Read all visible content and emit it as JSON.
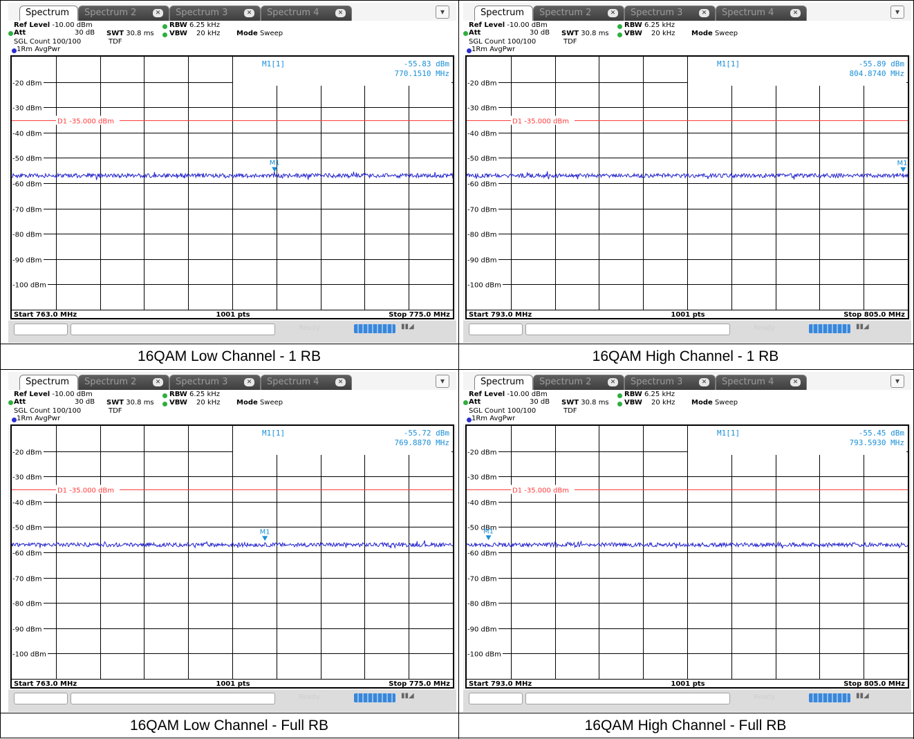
{
  "panels": [
    {
      "tabs": [
        "Spectrum",
        "Spectrum 2",
        "Spectrum 3",
        "Spectrum 4"
      ],
      "ref_level_label": "Ref Level",
      "ref_level": "-10.00 dBm",
      "att_label": "Att",
      "att": "30 dB",
      "swt_label": "SWT",
      "swt": "30.8 ms",
      "rbw_label": "RBW",
      "rbw": "6.25 kHz",
      "vbw_label": "VBW",
      "vbw": "20 kHz",
      "mode_label": "Mode",
      "mode": "Sweep",
      "sgl_count": "SGL Count 100/100",
      "tdf": "TDF",
      "trace_label": "1Rm AvgPwr",
      "marker_name": "M1[1]",
      "marker_level": "-55.83 dBm",
      "marker_freq": "770.1510 MHz",
      "start": "Start 763.0 MHz",
      "pts": "1001 pts",
      "stop": "Stop 775.0 MHz",
      "status_text": "Ready",
      "caption": "16QAM Low Channel - 1 RB",
      "chart_data": {
        "type": "line",
        "x_start_mhz": 763.0,
        "x_stop_mhz": 775.0,
        "y_ref_dbm": -10,
        "ylim": [
          -110,
          -10
        ],
        "ytick_labels": [
          "-20 dBm",
          "-30 dBm",
          "-40 dBm",
          "-50 dBm",
          "-60 dBm",
          "-70 dBm",
          "-80 dBm",
          "-90 dBm",
          "-100 dBm"
        ],
        "display_line": {
          "label": "D1 -35.000 dBm",
          "value_dbm": -35.0
        },
        "trace_noise_floor_dbm": -57.0,
        "marker": {
          "label": "M1",
          "x_mhz": 770.151,
          "y_dbm": -55.83
        }
      }
    },
    {
      "tabs": [
        "Spectrum",
        "Spectrum 2",
        "Spectrum 3",
        "Spectrum 4"
      ],
      "ref_level_label": "Ref Level",
      "ref_level": "-10.00 dBm",
      "att_label": "Att",
      "att": "30 dB",
      "swt_label": "SWT",
      "swt": "30.8 ms",
      "rbw_label": "RBW",
      "rbw": "6.25 kHz",
      "vbw_label": "VBW",
      "vbw": "20 kHz",
      "mode_label": "Mode",
      "mode": "Sweep",
      "sgl_count": "SGL Count 100/100",
      "tdf": "TDF",
      "trace_label": "1Rm AvgPwr",
      "marker_name": "M1[1]",
      "marker_level": "-55.89 dBm",
      "marker_freq": "804.8740 MHz",
      "start": "Start 793.0 MHz",
      "pts": "1001 pts",
      "stop": "Stop 805.0 MHz",
      "status_text": "Ready",
      "caption": "16QAM High Channel - 1 RB",
      "chart_data": {
        "type": "line",
        "x_start_mhz": 793.0,
        "x_stop_mhz": 805.0,
        "y_ref_dbm": -10,
        "ylim": [
          -110,
          -10
        ],
        "ytick_labels": [
          "-20 dBm",
          "-30 dBm",
          "-40 dBm",
          "-50 dBm",
          "-60 dBm",
          "-70 dBm",
          "-80 dBm",
          "-90 dBm",
          "-100 dBm"
        ],
        "display_line": {
          "label": "D1 -35.000 dBm",
          "value_dbm": -35.0
        },
        "trace_noise_floor_dbm": -57.0,
        "marker": {
          "label": "M1",
          "x_mhz": 804.874,
          "y_dbm": -55.89
        }
      }
    },
    {
      "tabs": [
        "Spectrum",
        "Spectrum 2",
        "Spectrum 3",
        "Spectrum 4"
      ],
      "ref_level_label": "Ref Level",
      "ref_level": "-10.00 dBm",
      "att_label": "Att",
      "att": "30 dB",
      "swt_label": "SWT",
      "swt": "30.8 ms",
      "rbw_label": "RBW",
      "rbw": "6.25 kHz",
      "vbw_label": "VBW",
      "vbw": "20 kHz",
      "mode_label": "Mode",
      "mode": "Sweep",
      "sgl_count": "SGL Count 100/100",
      "tdf": "TDF",
      "trace_label": "1Rm AvgPwr",
      "marker_name": "M1[1]",
      "marker_level": "-55.72 dBm",
      "marker_freq": "769.8870 MHz",
      "start": "Start 763.0 MHz",
      "pts": "1001 pts",
      "stop": "Stop 775.0 MHz",
      "status_text": "Ready",
      "caption": "16QAM Low Channel - Full RB",
      "chart_data": {
        "type": "line",
        "x_start_mhz": 763.0,
        "x_stop_mhz": 775.0,
        "y_ref_dbm": -10,
        "ylim": [
          -110,
          -10
        ],
        "ytick_labels": [
          "-20 dBm",
          "-30 dBm",
          "-40 dBm",
          "-50 dBm",
          "-60 dBm",
          "-70 dBm",
          "-80 dBm",
          "-90 dBm",
          "-100 dBm"
        ],
        "display_line": {
          "label": "D1 -35.000 dBm",
          "value_dbm": -35.0
        },
        "trace_noise_floor_dbm": -57.0,
        "marker": {
          "label": "M1",
          "x_mhz": 769.887,
          "y_dbm": -55.72
        }
      }
    },
    {
      "tabs": [
        "Spectrum",
        "Spectrum 2",
        "Spectrum 3",
        "Spectrum 4"
      ],
      "ref_level_label": "Ref Level",
      "ref_level": "-10.00 dBm",
      "att_label": "Att",
      "att": "30 dB",
      "swt_label": "SWT",
      "swt": "30.8 ms",
      "rbw_label": "RBW",
      "rbw": "6.25 kHz",
      "vbw_label": "VBW",
      "vbw": "20 kHz",
      "mode_label": "Mode",
      "mode": "Sweep",
      "sgl_count": "SGL Count 100/100",
      "tdf": "TDF",
      "trace_label": "1Rm AvgPwr",
      "marker_name": "M1[1]",
      "marker_level": "-55.45 dBm",
      "marker_freq": "793.5930 MHz",
      "start": "Start 793.0 MHz",
      "pts": "1001 pts",
      "stop": "Stop 805.0 MHz",
      "status_text": "Ready",
      "caption": "16QAM High Channel - Full RB",
      "chart_data": {
        "type": "line",
        "x_start_mhz": 793.0,
        "x_stop_mhz": 805.0,
        "y_ref_dbm": -10,
        "ylim": [
          -110,
          -10
        ],
        "ytick_labels": [
          "-20 dBm",
          "-30 dBm",
          "-40 dBm",
          "-50 dBm",
          "-60 dBm",
          "-70 dBm",
          "-80 dBm",
          "-90 dBm",
          "-100 dBm"
        ],
        "display_line": {
          "label": "D1 -35.000 dBm",
          "value_dbm": -35.0
        },
        "trace_noise_floor_dbm": -57.0,
        "marker": {
          "label": "M1",
          "x_mhz": 793.593,
          "y_dbm": -55.45
        }
      }
    }
  ],
  "colors": {
    "trace": "#2222cc",
    "display_line": "#ff3b3b",
    "marker": "#1a8fd8",
    "grid": "#000000"
  }
}
